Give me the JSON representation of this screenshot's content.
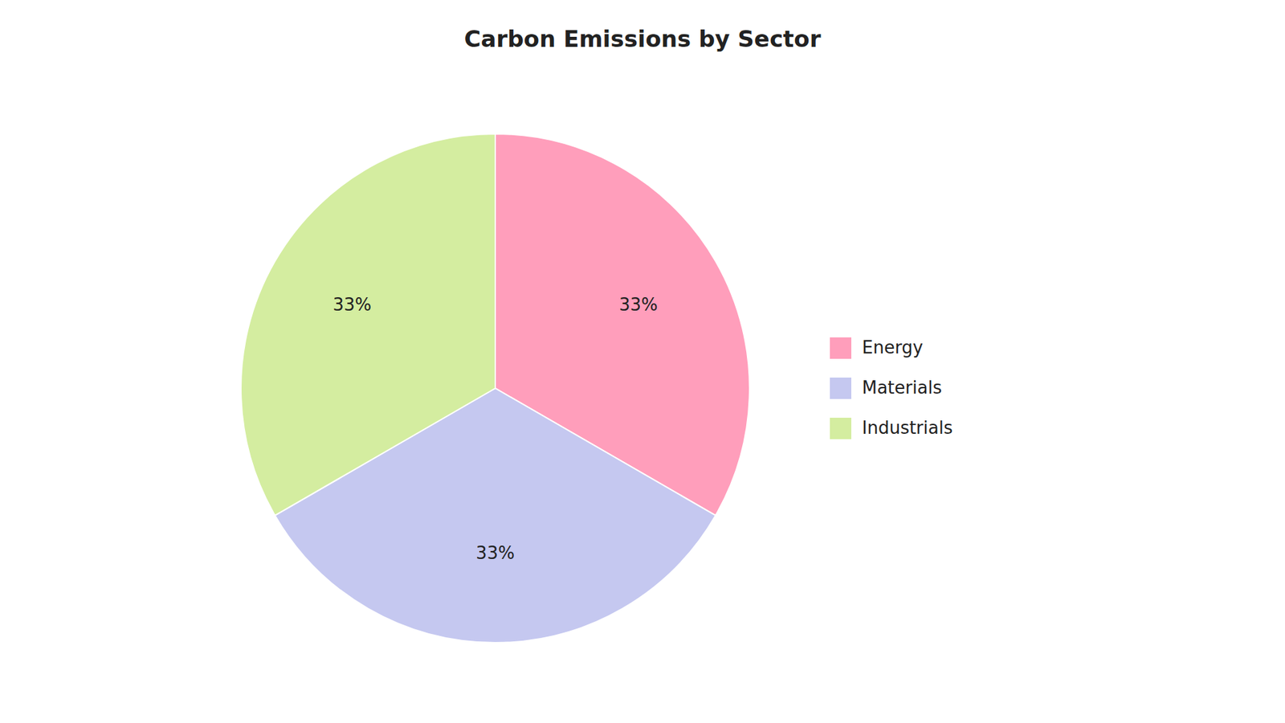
{
  "chart_data": {
    "type": "pie",
    "title": "Carbon Emissions by Sector",
    "categories": [
      "Energy",
      "Materials",
      "Industrials"
    ],
    "values": [
      33.33,
      33.34,
      33.33
    ],
    "value_labels": [
      "33%",
      "33%",
      "33%"
    ],
    "colors": [
      "#FF9EBB",
      "#C5C8F0",
      "#D4EDA0"
    ],
    "data_labels": true,
    "legend": "right"
  }
}
